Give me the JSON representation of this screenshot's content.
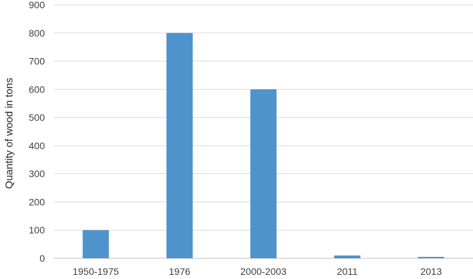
{
  "chart_data": {
    "type": "bar",
    "title": "",
    "xlabel": "",
    "ylabel": "Quantity of wood in tons",
    "categories": [
      "1950-1975",
      "1976",
      "2000-2003",
      "2011",
      "2013"
    ],
    "values": [
      100,
      800,
      600,
      10,
      5
    ],
    "ylim": [
      0,
      900
    ],
    "yticks": [
      0,
      100,
      200,
      300,
      400,
      500,
      600,
      700,
      800,
      900
    ],
    "grid": true,
    "legend": "none",
    "bar_color": "#4f93cc"
  }
}
